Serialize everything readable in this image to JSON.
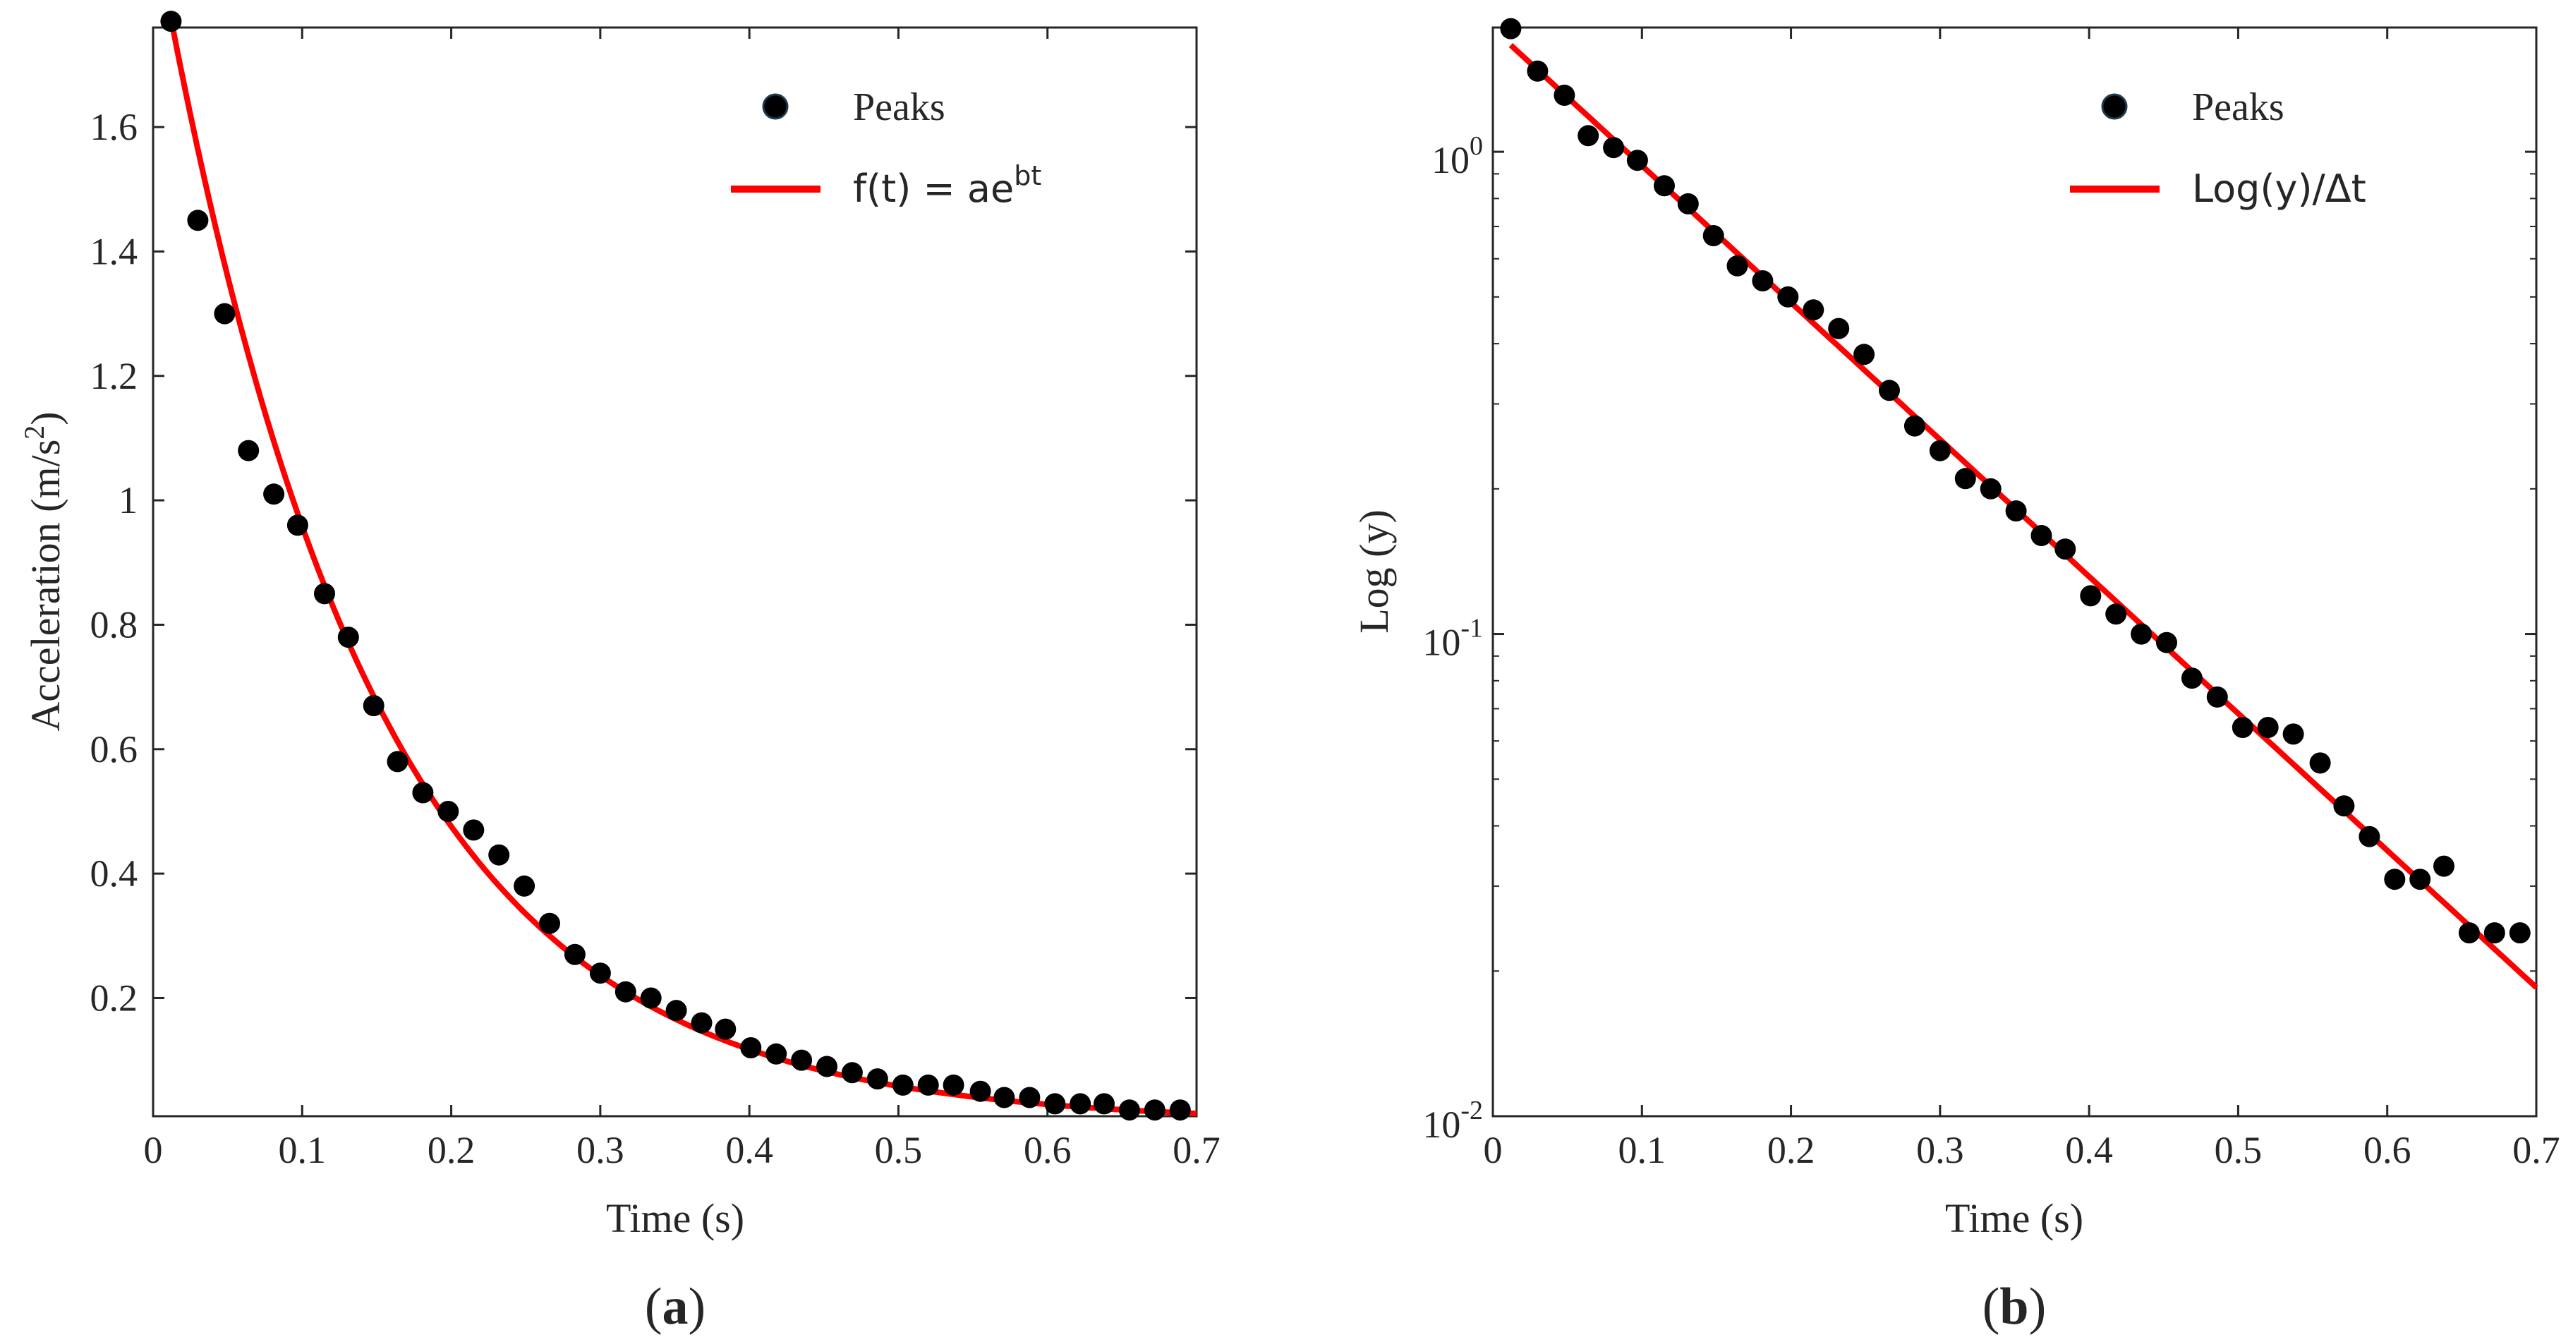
{
  "chart_data": [
    {
      "id": "a",
      "type": "scatter",
      "title": "",
      "caption_open": "(",
      "caption_letter": "a",
      "caption_close": ")",
      "xlabel": "Time (s)",
      "ylabel": "Acceleration (m/s",
      "ylabel_sup": "2",
      "ylabel_close": ")",
      "xlim": [
        0,
        0.7
      ],
      "ylim": [
        0.01,
        1.76
      ],
      "yscale": "linear",
      "grid": false,
      "legend_position": "top-right",
      "xticks": [
        0,
        0.1,
        0.2,
        0.3,
        0.4,
        0.5,
        0.6,
        0.7
      ],
      "xtick_labels": [
        "0",
        "0.1",
        "0.2",
        "0.3",
        "0.4",
        "0.5",
        "0.6",
        "0.7"
      ],
      "yticks": [
        0.2,
        0.4,
        0.6,
        0.8,
        1.0,
        1.2,
        1.4,
        1.6
      ],
      "ytick_labels": [
        "0.2",
        "0.4",
        "0.6",
        "0.8",
        "1",
        "1.2",
        "1.4",
        "1.6"
      ],
      "series": [
        {
          "name": "Peaks",
          "kind": "scatter",
          "color": "#000000",
          "x": [
            0.012,
            0.03,
            0.048,
            0.064,
            0.081,
            0.097,
            0.115,
            0.131,
            0.148,
            0.164,
            0.181,
            0.198,
            0.215,
            0.232,
            0.249,
            0.266,
            0.283,
            0.3,
            0.317,
            0.334,
            0.351,
            0.368,
            0.384,
            0.401,
            0.418,
            0.435,
            0.452,
            0.469,
            0.486,
            0.503,
            0.52,
            0.537,
            0.555,
            0.571,
            0.588,
            0.605,
            0.622,
            0.638,
            0.655,
            0.672,
            0.689
          ],
          "y": [
            1.77,
            1.45,
            1.3,
            1.08,
            1.01,
            0.96,
            0.85,
            0.78,
            0.67,
            0.58,
            0.53,
            0.5,
            0.47,
            0.43,
            0.38,
            0.32,
            0.27,
            0.24,
            0.21,
            0.2,
            0.18,
            0.16,
            0.15,
            0.12,
            0.11,
            0.1,
            0.09,
            0.08,
            0.07,
            0.06,
            0.06,
            0.06,
            0.05,
            0.04,
            0.04,
            0.03,
            0.03,
            0.03,
            0.02,
            0.02,
            0.02
          ]
        },
        {
          "name": "f(t) = ae",
          "name_sup": "bt",
          "kind": "line",
          "color": "#ff0000",
          "a": 1.93,
          "b": -7.0,
          "x_range": [
            0.012,
            0.7
          ]
        }
      ]
    },
    {
      "id": "b",
      "type": "scatter",
      "title": "",
      "caption_open": "(",
      "caption_letter": "b",
      "caption_close": ")",
      "xlabel": "Time (s)",
      "ylabel": "Log (y)",
      "xlim": [
        0,
        0.7
      ],
      "ylim": [
        0.01,
        1.81
      ],
      "yscale": "log",
      "grid": false,
      "legend_position": "top-right",
      "xticks": [
        0,
        0.1,
        0.2,
        0.3,
        0.4,
        0.5,
        0.6,
        0.7
      ],
      "xtick_labels": [
        "0",
        "0.1",
        "0.2",
        "0.3",
        "0.4",
        "0.5",
        "0.6",
        "0.7"
      ],
      "yticks": [
        0.01,
        0.1,
        1
      ],
      "ytick_base": [
        "10",
        "10",
        "10"
      ],
      "ytick_exp": [
        "-2",
        "-1",
        "0"
      ],
      "series": [
        {
          "name": "Peaks",
          "kind": "scatter",
          "color": "#000000",
          "x": [
            0.012,
            0.03,
            0.048,
            0.064,
            0.081,
            0.097,
            0.115,
            0.131,
            0.148,
            0.164,
            0.181,
            0.198,
            0.215,
            0.232,
            0.249,
            0.266,
            0.283,
            0.3,
            0.317,
            0.334,
            0.351,
            0.368,
            0.384,
            0.401,
            0.418,
            0.435,
            0.452,
            0.469,
            0.486,
            0.503,
            0.52,
            0.537,
            0.555,
            0.571,
            0.588,
            0.605,
            0.622,
            0.638,
            0.655,
            0.672,
            0.689
          ],
          "y": [
            1.8,
            1.47,
            1.31,
            1.08,
            1.02,
            0.96,
            0.85,
            0.78,
            0.67,
            0.58,
            0.54,
            0.5,
            0.47,
            0.43,
            0.38,
            0.32,
            0.27,
            0.24,
            0.21,
            0.2,
            0.18,
            0.16,
            0.15,
            0.12,
            0.11,
            0.1,
            0.096,
            0.081,
            0.074,
            0.064,
            0.064,
            0.062,
            0.054,
            0.044,
            0.038,
            0.031,
            0.031,
            0.033,
            0.024,
            0.024,
            0.024
          ]
        },
        {
          "name": "Log(y)/Δt",
          "kind": "line",
          "color": "#ff0000",
          "a": 1.8,
          "b": -6.54,
          "x_range": [
            0.012,
            0.7
          ]
        }
      ]
    }
  ]
}
